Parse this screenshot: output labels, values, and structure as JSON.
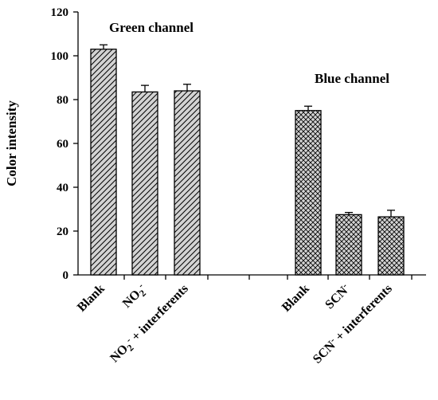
{
  "chart_data": {
    "type": "bar",
    "ylabel": "Color intensity",
    "ylim": [
      0,
      120
    ],
    "yticks": [
      0,
      20,
      40,
      60,
      80,
      100,
      120
    ],
    "grid": false,
    "legend": "none",
    "groups": [
      {
        "name": "Green channel",
        "fill": "hatch-diagonal",
        "bar_color": "#d3d3d3",
        "categories": [
          {
            "label": "Blank",
            "sub": "",
            "sup": "",
            "tail": ""
          },
          {
            "label": "NO",
            "sub": "2",
            "sup": "-",
            "tail": ""
          },
          {
            "label": "NO",
            "sub": "2",
            "sup": "-",
            "tail": " + interferents"
          }
        ],
        "values": [
          103,
          83.5,
          84
        ],
        "errors": [
          2,
          3,
          3
        ]
      },
      {
        "name": "Blue channel",
        "fill": "hatch-crosshatch",
        "bar_color": "#d3d3d3",
        "categories": [
          {
            "label": "Blank",
            "sub": "",
            "sup": "",
            "tail": ""
          },
          {
            "label": "SCN",
            "sub": "",
            "sup": "-",
            "tail": ""
          },
          {
            "label": "SCN",
            "sub": "",
            "sup": "-",
            "tail": " + interferents"
          }
        ],
        "values": [
          75,
          27.5,
          26.5
        ],
        "errors": [
          2,
          1,
          3
        ]
      }
    ]
  }
}
